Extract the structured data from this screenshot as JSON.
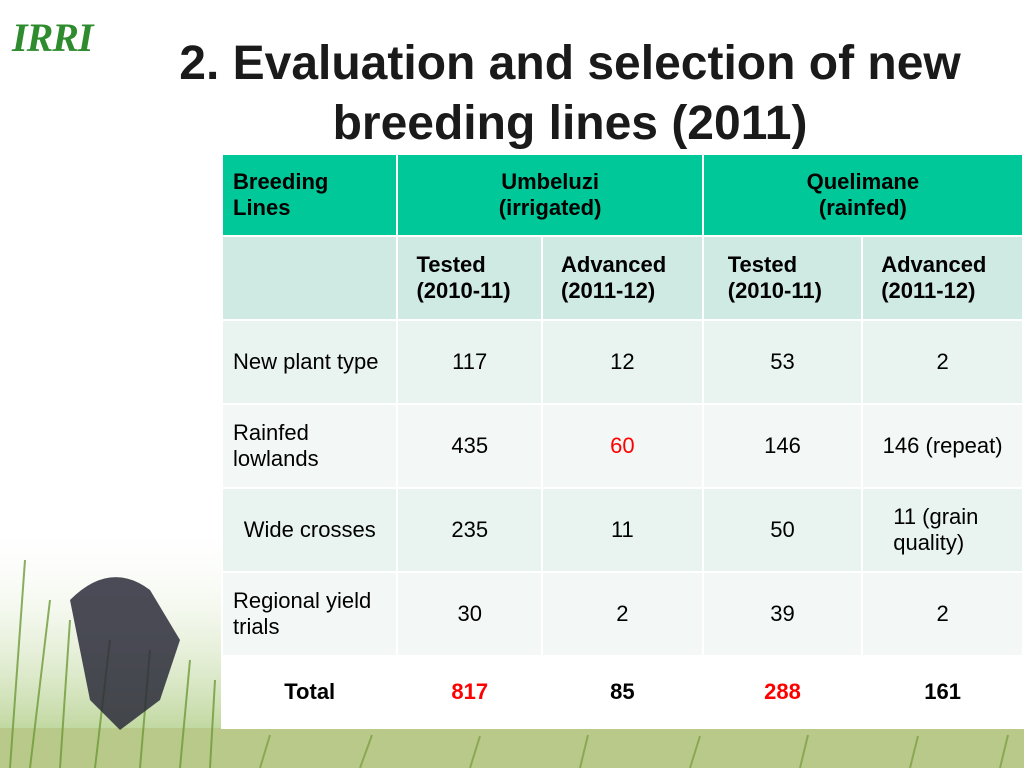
{
  "logo": "IRRI",
  "title_line1": "2. Evaluation and selection of new",
  "title_line2": "breeding lines  (2011)",
  "header": {
    "breeding_lines": "Breeding Lines",
    "site1": "Umbeluzi",
    "site1_sub": "(irrigated)",
    "site2": "Quelimane",
    "site2_sub": "(rainfed)",
    "tested": "Tested",
    "tested_years": "(2010-11)",
    "advanced": "Advanced",
    "advanced_years": "(2011-12)"
  },
  "rows": [
    {
      "label": "New plant type",
      "u_tested": "117",
      "u_adv": "12",
      "q_tested": "53",
      "q_adv": "2"
    },
    {
      "label": "Rainfed lowlands",
      "u_tested": "435",
      "u_adv": "60",
      "q_tested": "146",
      "q_adv": "146 (repeat)"
    },
    {
      "label": "Wide crosses",
      "u_tested": "235",
      "u_adv": "11",
      "q_tested": "50",
      "q_adv": "11 (grain quality)"
    },
    {
      "label": "Regional yield trials",
      "u_tested": "30",
      "u_adv": "2",
      "q_tested": "39",
      "q_adv": "2"
    }
  ],
  "total": {
    "label": "Total",
    "u_tested": "817",
    "u_adv": "85",
    "q_tested": "288",
    "q_adv": "161"
  },
  "colors": {
    "header_bg": "#00c898",
    "highlight": "#ff0000",
    "logo": "#2e8b2e"
  }
}
